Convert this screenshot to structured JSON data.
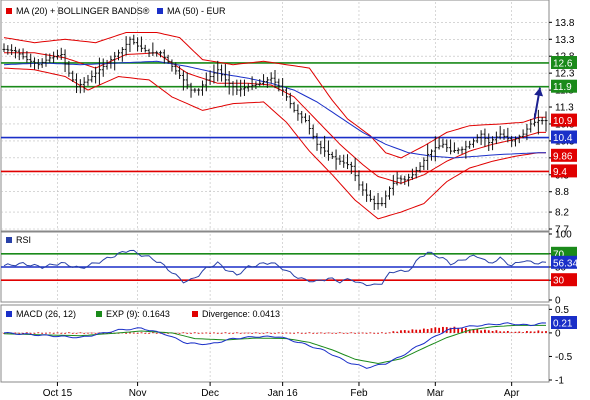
{
  "colors": {
    "border": "#888888",
    "grid": "#bdbdbd",
    "price": "#111111",
    "ma20": "#e00000",
    "boll": "#e00000",
    "ma50": "#1a2fc8",
    "res": "#1a8a1a",
    "mid": "#1a2fc8",
    "sup": "#e00000",
    "rsi": "#2840a8",
    "macd": "#1a2fc8",
    "signal": "#1a8a1a",
    "div": "#e00000",
    "arrow": "#1a2090",
    "neg": "#ffffff"
  },
  "chart_data": [
    {
      "type": "line",
      "panel": "price",
      "legend": [
        {
          "text": "MA (20) + BOLLINGER BANDS®",
          "color": "#e00000"
        },
        {
          "text": "MA (50) - EUR",
          "color": "#1a2fc8"
        }
      ],
      "ylim": [
        7.7,
        14.4
      ],
      "y_ticks": [
        "13.8",
        "13.3",
        "12.8",
        "12.3",
        "11.8",
        "11.3",
        "10.8",
        "10.3",
        "9.8",
        "9.3",
        "8.8",
        "8.2",
        "7.7"
      ],
      "y_tick_values": [
        13.8,
        13.3,
        12.8,
        12.3,
        11.8,
        11.3,
        10.8,
        10.3,
        9.8,
        9.3,
        8.8,
        8.2,
        7.7
      ],
      "x_ticks": [
        "Oct 15",
        "Nov",
        "Dec",
        "Jan 16",
        "Feb",
        "Mar",
        "Apr"
      ],
      "x_tick_pos": [
        14,
        35,
        54,
        73,
        93,
        113,
        133
      ],
      "n_days": 143,
      "levels": [
        {
          "value": 12.6,
          "label": "12.6",
          "color": "#1a8a1a"
        },
        {
          "value": 11.9,
          "label": "11.9",
          "color": "#1a8a1a"
        },
        {
          "value": 10.4,
          "label": "10.4",
          "color": "#1a2fc8"
        },
        {
          "value": 9.4,
          "label": "9.4",
          "color": "#e00000"
        }
      ],
      "markers": [
        {
          "value": 10.9,
          "label": "10.9",
          "color": "#e00000"
        },
        {
          "value": 9.86,
          "label": "9.86",
          "color": "#e00000"
        }
      ],
      "price_anchors": [
        [
          0,
          13.0
        ],
        [
          3,
          12.95
        ],
        [
          6,
          12.7
        ],
        [
          9,
          12.55
        ],
        [
          12,
          12.75
        ],
        [
          15,
          12.85
        ],
        [
          17,
          12.3
        ],
        [
          19,
          11.9
        ],
        [
          22,
          12.1
        ],
        [
          26,
          12.5
        ],
        [
          29,
          12.8
        ],
        [
          31,
          13.0
        ],
        [
          33,
          13.3
        ],
        [
          35,
          13.1
        ],
        [
          38,
          12.9
        ],
        [
          41,
          12.9
        ],
        [
          44,
          12.5
        ],
        [
          47,
          12.1
        ],
        [
          49,
          11.8
        ],
        [
          51,
          11.8
        ],
        [
          53,
          12.1
        ],
        [
          56,
          12.4
        ],
        [
          58,
          12.1
        ],
        [
          61,
          11.8
        ],
        [
          64,
          11.9
        ],
        [
          67,
          12.0
        ],
        [
          70,
          12.15
        ],
        [
          73,
          11.8
        ],
        [
          76,
          11.2
        ],
        [
          79,
          10.9
        ],
        [
          82,
          10.2
        ],
        [
          85,
          9.9
        ],
        [
          88,
          9.7
        ],
        [
          91,
          9.55
        ],
        [
          93,
          9.0
        ],
        [
          95,
          8.7
        ],
        [
          97,
          8.45
        ],
        [
          99,
          8.45
        ],
        [
          101,
          8.9
        ],
        [
          103,
          9.2
        ],
        [
          105,
          9.15
        ],
        [
          107,
          9.3
        ],
        [
          109,
          9.55
        ],
        [
          111,
          9.9
        ],
        [
          113,
          10.1
        ],
        [
          115,
          10.2
        ],
        [
          117,
          10.0
        ],
        [
          120,
          10.05
        ],
        [
          122,
          10.2
        ],
        [
          125,
          10.5
        ],
        [
          127,
          10.25
        ],
        [
          130,
          10.5
        ],
        [
          133,
          10.3
        ],
        [
          136,
          10.5
        ],
        [
          138,
          10.8
        ],
        [
          140,
          10.9
        ]
      ],
      "ma20_anchors": [
        [
          0,
          12.9
        ],
        [
          8,
          12.9
        ],
        [
          16,
          12.75
        ],
        [
          24,
          12.45
        ],
        [
          32,
          12.85
        ],
        [
          40,
          12.9
        ],
        [
          48,
          12.3
        ],
        [
          56,
          12.0
        ],
        [
          64,
          12.0
        ],
        [
          70,
          11.95
        ],
        [
          76,
          11.6
        ],
        [
          82,
          10.9
        ],
        [
          88,
          10.2
        ],
        [
          94,
          9.6
        ],
        [
          98,
          9.25
        ],
        [
          104,
          9.05
        ],
        [
          110,
          9.3
        ],
        [
          116,
          9.7
        ],
        [
          122,
          10.0
        ],
        [
          128,
          10.2
        ],
        [
          134,
          10.35
        ],
        [
          140,
          10.55
        ]
      ],
      "boll_upper_anchors": [
        [
          0,
          13.35
        ],
        [
          8,
          13.2
        ],
        [
          16,
          13.3
        ],
        [
          24,
          13.2
        ],
        [
          32,
          13.5
        ],
        [
          40,
          13.5
        ],
        [
          46,
          13.35
        ],
        [
          52,
          12.7
        ],
        [
          60,
          12.55
        ],
        [
          68,
          12.65
        ],
        [
          74,
          12.55
        ],
        [
          80,
          12.45
        ],
        [
          86,
          11.5
        ],
        [
          90,
          10.95
        ],
        [
          96,
          10.45
        ],
        [
          100,
          9.95
        ],
        [
          104,
          9.8
        ],
        [
          110,
          10.15
        ],
        [
          116,
          10.55
        ],
        [
          122,
          10.75
        ],
        [
          130,
          10.8
        ],
        [
          136,
          10.85
        ],
        [
          140,
          11.0
        ]
      ],
      "boll_lower_anchors": [
        [
          0,
          12.45
        ],
        [
          8,
          12.4
        ],
        [
          16,
          12.2
        ],
        [
          22,
          11.8
        ],
        [
          30,
          12.2
        ],
        [
          38,
          12.1
        ],
        [
          44,
          11.6
        ],
        [
          52,
          11.2
        ],
        [
          60,
          11.4
        ],
        [
          68,
          11.45
        ],
        [
          74,
          10.85
        ],
        [
          80,
          10.0
        ],
        [
          86,
          9.3
        ],
        [
          92,
          8.55
        ],
        [
          98,
          8.0
        ],
        [
          104,
          8.2
        ],
        [
          110,
          8.45
        ],
        [
          116,
          9.1
        ],
        [
          122,
          9.5
        ],
        [
          128,
          9.7
        ],
        [
          134,
          9.85
        ],
        [
          140,
          9.95
        ]
      ],
      "ma50_anchors": [
        [
          0,
          12.55
        ],
        [
          10,
          12.6
        ],
        [
          20,
          12.55
        ],
        [
          30,
          12.6
        ],
        [
          40,
          12.65
        ],
        [
          48,
          12.5
        ],
        [
          56,
          12.3
        ],
        [
          64,
          12.15
        ],
        [
          70,
          12.0
        ],
        [
          76,
          11.8
        ],
        [
          82,
          11.45
        ],
        [
          88,
          11.0
        ],
        [
          94,
          10.55
        ],
        [
          100,
          10.2
        ],
        [
          106,
          9.95
        ],
        [
          112,
          9.85
        ],
        [
          118,
          9.8
        ],
        [
          124,
          9.85
        ],
        [
          130,
          9.9
        ],
        [
          136,
          9.93
        ],
        [
          140,
          9.95
        ]
      ]
    },
    {
      "type": "line",
      "panel": "rsi",
      "legend": [
        {
          "text": "RSI",
          "color": "#2840a8"
        }
      ],
      "ylim": [
        0,
        100
      ],
      "y_ticks": [
        "100",
        "70",
        "50",
        "30",
        "0"
      ],
      "y_tick_values": [
        100,
        70,
        50,
        30,
        0
      ],
      "levels": [
        {
          "value": 70,
          "label": "70",
          "color": "#1a8a1a"
        },
        {
          "value": 50,
          "label": "",
          "color": "#1a2fc8"
        },
        {
          "value": 30,
          "label": "30",
          "color": "#e00000"
        }
      ],
      "last_value": {
        "value": 56.34,
        "label": "56.34",
        "color": "#1a2fc8"
      },
      "rsi_anchors": [
        [
          0,
          52
        ],
        [
          5,
          55
        ],
        [
          10,
          50
        ],
        [
          15,
          56
        ],
        [
          20,
          48
        ],
        [
          25,
          58
        ],
        [
          28,
          65
        ],
        [
          31,
          72
        ],
        [
          33,
          76
        ],
        [
          35,
          70
        ],
        [
          38,
          65
        ],
        [
          41,
          56
        ],
        [
          44,
          42
        ],
        [
          47,
          28
        ],
        [
          49,
          30
        ],
        [
          51,
          38
        ],
        [
          53,
          48
        ],
        [
          56,
          56
        ],
        [
          58,
          47
        ],
        [
          61,
          38
        ],
        [
          64,
          50
        ],
        [
          67,
          54
        ],
        [
          70,
          57
        ],
        [
          73,
          48
        ],
        [
          76,
          37
        ],
        [
          79,
          30
        ],
        [
          82,
          28
        ],
        [
          85,
          33
        ],
        [
          88,
          28
        ],
        [
          91,
          32
        ],
        [
          93,
          25
        ],
        [
          95,
          24
        ],
        [
          97,
          22
        ],
        [
          99,
          26
        ],
        [
          101,
          40
        ],
        [
          103,
          45
        ],
        [
          105,
          42
        ],
        [
          107,
          50
        ],
        [
          109,
          65
        ],
        [
          111,
          72
        ],
        [
          113,
          68
        ],
        [
          115,
          63
        ],
        [
          117,
          55
        ],
        [
          120,
          60
        ],
        [
          122,
          66
        ],
        [
          125,
          65
        ],
        [
          127,
          55
        ],
        [
          130,
          63
        ],
        [
          133,
          52
        ],
        [
          136,
          60
        ],
        [
          138,
          57
        ],
        [
          140,
          56
        ]
      ]
    },
    {
      "type": "line",
      "panel": "macd",
      "legend": [
        {
          "text": "MACD (26, 12)",
          "color": "#1a2fc8"
        },
        {
          "text": "EXP (9): 0.1643",
          "color": "#1a8a1a"
        },
        {
          "text": "Divergence: 0.0413",
          "color": "#e00000"
        }
      ],
      "ylim": [
        -1.0,
        0.55
      ],
      "y_ticks": [
        "0.5",
        "0",
        "-0.5",
        "-1"
      ],
      "y_tick_values": [
        0.5,
        0,
        -0.5,
        -1
      ],
      "last_value": {
        "value": 0.21,
        "label": "0.21",
        "color": "#1a2fc8"
      },
      "macd_anchors": [
        [
          0,
          0.0
        ],
        [
          10,
          -0.05
        ],
        [
          20,
          -0.1
        ],
        [
          30,
          0.06
        ],
        [
          36,
          0.1
        ],
        [
          42,
          -0.02
        ],
        [
          48,
          -0.22
        ],
        [
          54,
          -0.24
        ],
        [
          60,
          -0.12
        ],
        [
          66,
          -0.08
        ],
        [
          72,
          -0.08
        ],
        [
          78,
          -0.22
        ],
        [
          84,
          -0.38
        ],
        [
          90,
          -0.62
        ],
        [
          95,
          -0.74
        ],
        [
          100,
          -0.65
        ],
        [
          104,
          -0.5
        ],
        [
          108,
          -0.3
        ],
        [
          112,
          -0.12
        ],
        [
          116,
          0.06
        ],
        [
          120,
          0.12
        ],
        [
          126,
          0.17
        ],
        [
          132,
          0.2
        ],
        [
          138,
          0.16
        ],
        [
          140,
          0.2
        ]
      ],
      "signal_anchors": [
        [
          0,
          -0.02
        ],
        [
          10,
          -0.04
        ],
        [
          20,
          -0.06
        ],
        [
          30,
          0.0
        ],
        [
          36,
          0.04
        ],
        [
          44,
          0.0
        ],
        [
          50,
          -0.12
        ],
        [
          58,
          -0.15
        ],
        [
          66,
          -0.11
        ],
        [
          74,
          -0.12
        ],
        [
          80,
          -0.2
        ],
        [
          86,
          -0.36
        ],
        [
          92,
          -0.56
        ],
        [
          98,
          -0.65
        ],
        [
          104,
          -0.55
        ],
        [
          110,
          -0.32
        ],
        [
          116,
          -0.1
        ],
        [
          122,
          0.06
        ],
        [
          128,
          0.13
        ],
        [
          134,
          0.16
        ],
        [
          140,
          0.16
        ]
      ],
      "div_anchors": [
        [
          0,
          0.0
        ],
        [
          100,
          0.0
        ],
        [
          104,
          0.05
        ],
        [
          110,
          0.08
        ],
        [
          114,
          0.12
        ],
        [
          118,
          0.12
        ],
        [
          124,
          0.07
        ],
        [
          130,
          0.04
        ],
        [
          134,
          0.02
        ],
        [
          140,
          0.04
        ]
      ]
    }
  ]
}
